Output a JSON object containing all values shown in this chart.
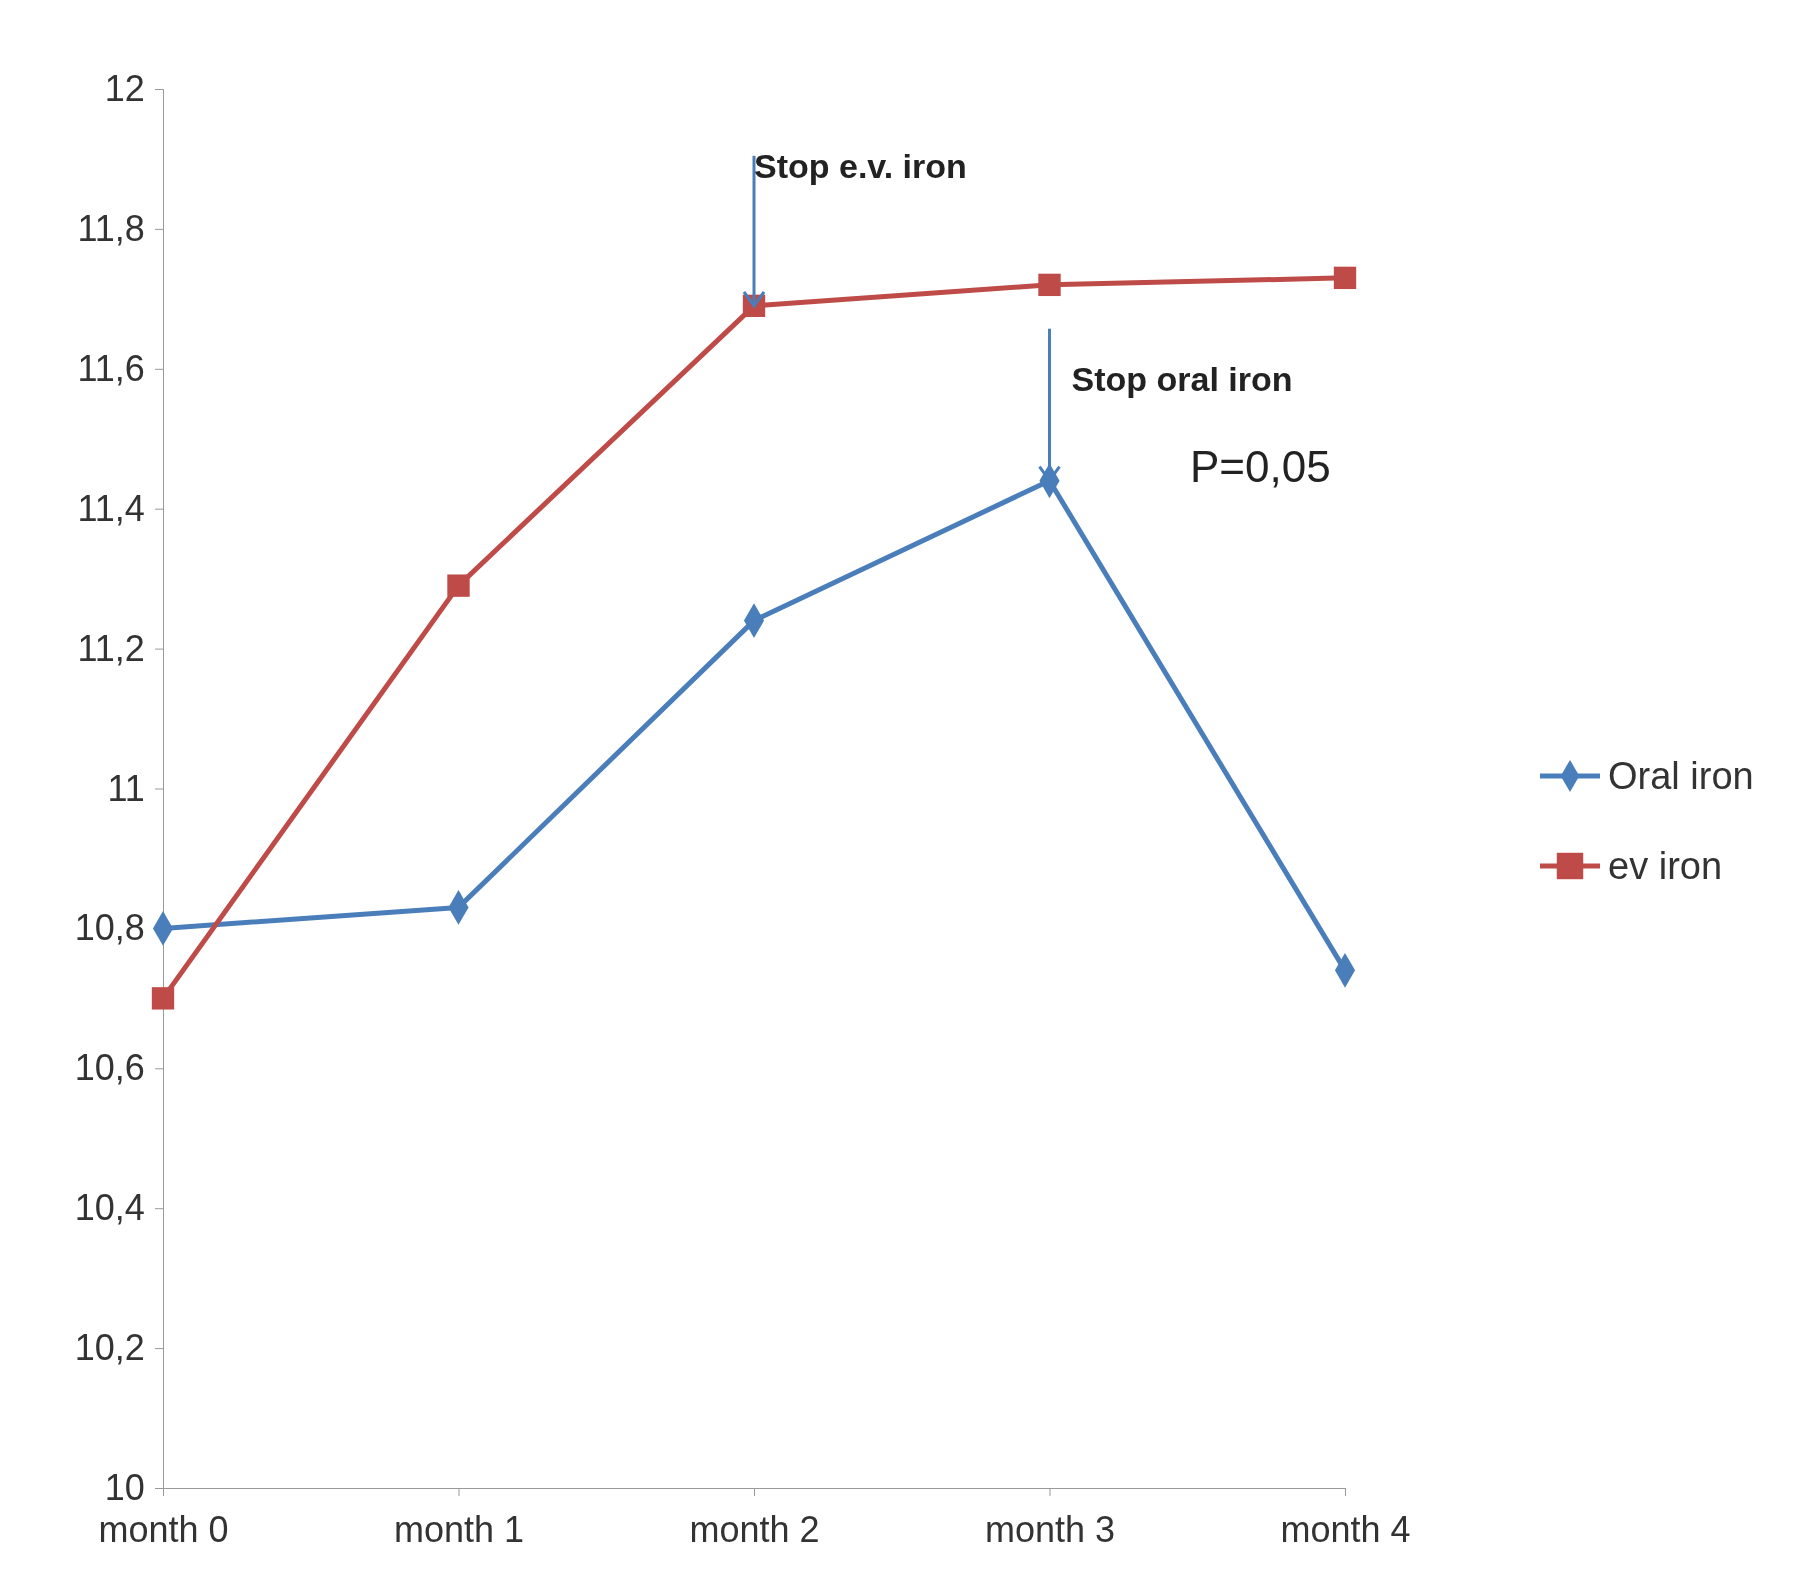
{
  "chart_data": {
    "type": "line",
    "categories": [
      "month 0",
      "month 1",
      "month 2",
      "month 3",
      "month 4"
    ],
    "series": [
      {
        "name": "Oral iron",
        "color": "#4a7ebb",
        "marker": "diamond",
        "values": [
          10.8,
          10.83,
          11.24,
          11.44,
          10.74
        ]
      },
      {
        "name": "ev iron",
        "color": "#be4b48",
        "marker": "square",
        "values": [
          10.7,
          11.29,
          11.69,
          11.72,
          11.73
        ]
      }
    ],
    "ylim": [
      10,
      12
    ],
    "yticks": [
      10,
      {
        "value": 10.2,
        "label": "10,2"
      },
      {
        "value": 10.4,
        "label": "10,4"
      },
      {
        "value": 10.6,
        "label": "10,6"
      },
      {
        "value": 10.8,
        "label": "10,8"
      },
      11,
      {
        "value": 11.2,
        "label": "11,2"
      },
      {
        "value": 11.4,
        "label": "11,4"
      },
      {
        "value": 11.6,
        "label": "11,6"
      },
      {
        "value": 11.8,
        "label": "11,8"
      },
      12
    ],
    "annotations": [
      {
        "text": "Stop e.v. iron",
        "x": "month 2",
        "y": 11.69
      },
      {
        "text": "Stop oral iron",
        "x": "month 3",
        "y": 11.44
      },
      "P=0,05"
    ],
    "legend": "right",
    "grid": false,
    "line_style": "solid"
  }
}
